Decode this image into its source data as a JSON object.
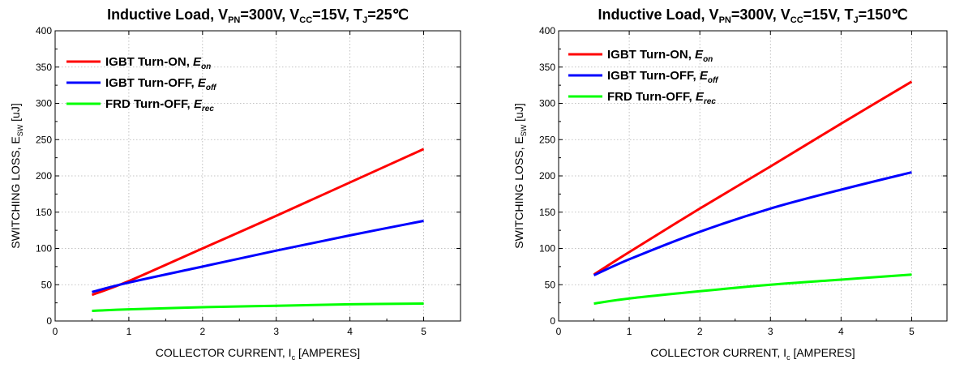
{
  "chart_data": [
    {
      "type": "line",
      "title": {
        "main": "Inductive Load, V",
        "parts": [
          [
            "Inductive Load, V",
            ""
          ],
          [
            "PN",
            "sub"
          ],
          [
            "=300V, V",
            ""
          ],
          [
            "CC",
            "sub"
          ],
          [
            "=15V, T",
            ""
          ],
          [
            "J",
            "sub"
          ],
          [
            "=25℃",
            ""
          ]
        ]
      },
      "xlabel": {
        "parts": [
          [
            "COLLECTOR CURRENT, I",
            ""
          ],
          [
            "c",
            "sub"
          ],
          [
            " [AMPERES]",
            ""
          ]
        ]
      },
      "ylabel": {
        "parts": [
          [
            "SWITCHING LOSS, E",
            ""
          ],
          [
            "SW",
            "sub"
          ],
          [
            " [uJ]",
            ""
          ]
        ]
      },
      "xlim": [
        0,
        5.5
      ],
      "ylim": [
        0,
        400
      ],
      "xticks": [
        0,
        1,
        2,
        3,
        4,
        5
      ],
      "yticks": [
        0,
        50,
        100,
        150,
        200,
        250,
        300,
        350,
        400
      ],
      "grid": true,
      "legend_position": "top-left",
      "series": [
        {
          "name": "IGBT Turn-ON, ",
          "name_italic": "E",
          "name_sub": "on",
          "color": "#ff0000",
          "x": [
            0.5,
            1,
            2,
            3,
            4,
            5
          ],
          "y": [
            36,
            55,
            100,
            145,
            191,
            237
          ]
        },
        {
          "name": "IGBT Turn-OFF, ",
          "name_italic": "E",
          "name_sub": "off",
          "color": "#0000ff",
          "x": [
            0.5,
            1,
            2,
            3,
            4,
            5
          ],
          "y": [
            40,
            53,
            75,
            97,
            118,
            138
          ]
        },
        {
          "name": "FRD Turn-OFF, ",
          "name_italic": "E",
          "name_sub": "rec",
          "color": "#00ff00",
          "x": [
            0.5,
            1,
            2,
            3,
            4,
            5
          ],
          "y": [
            14,
            16,
            19,
            21,
            23,
            24
          ]
        }
      ]
    },
    {
      "type": "line",
      "title": {
        "parts": [
          [
            "Inductive Load, V",
            ""
          ],
          [
            "PN",
            "sub"
          ],
          [
            "=300V, V",
            ""
          ],
          [
            "CC",
            "sub"
          ],
          [
            "=15V, T",
            ""
          ],
          [
            "J",
            "sub"
          ],
          [
            "=150℃",
            ""
          ]
        ]
      },
      "xlabel": {
        "parts": [
          [
            "COLLECTOR CURRENT, I",
            ""
          ],
          [
            "c",
            "sub"
          ],
          [
            " [AMPERES]",
            ""
          ]
        ]
      },
      "ylabel": {
        "parts": [
          [
            "SWITCHING LOSS, E",
            ""
          ],
          [
            "SW",
            "sub"
          ],
          [
            " [uJ]",
            ""
          ]
        ]
      },
      "xlim": [
        0,
        5.5
      ],
      "ylim": [
        0,
        400
      ],
      "xticks": [
        0,
        1,
        2,
        3,
        4,
        5
      ],
      "yticks": [
        0,
        50,
        100,
        150,
        200,
        250,
        300,
        350,
        400
      ],
      "grid": true,
      "legend_position": "top-left",
      "series": [
        {
          "name": "IGBT Turn-ON, ",
          "name_italic": "E",
          "name_sub": "on",
          "color": "#ff0000",
          "x": [
            0.5,
            1,
            2,
            3,
            4,
            5
          ],
          "y": [
            64,
            95,
            155,
            213,
            272,
            330
          ]
        },
        {
          "name": "IGBT Turn-OFF, ",
          "name_italic": "E",
          "name_sub": "off",
          "color": "#0000ff",
          "x": [
            0.5,
            1,
            2,
            3,
            4,
            5
          ],
          "y": [
            63,
            85,
            123,
            155,
            181,
            205
          ]
        },
        {
          "name": "FRD Turn-OFF, ",
          "name_italic": "E",
          "name_sub": "rec",
          "color": "#00ff00",
          "x": [
            0.5,
            1,
            2,
            3,
            4,
            5
          ],
          "y": [
            24,
            31,
            41,
            50,
            57,
            64
          ]
        }
      ]
    }
  ]
}
